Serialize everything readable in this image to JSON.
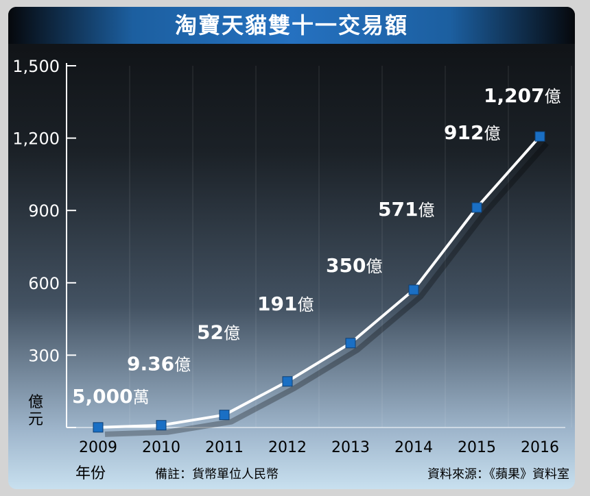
{
  "chart_data": {
    "type": "line",
    "title": "淘寶天貓雙十一交易額",
    "categories": [
      "2009",
      "2010",
      "2011",
      "2012",
      "2013",
      "2014",
      "2015",
      "2016"
    ],
    "series": [
      {
        "values": [
          0.5,
          9.36,
          52,
          191,
          350,
          571,
          912,
          1207
        ]
      }
    ],
    "data_labels": [
      {
        "value": "5,000",
        "unit": "萬"
      },
      {
        "value": "9.36",
        "unit": "億"
      },
      {
        "value": "52",
        "unit": "億"
      },
      {
        "value": "191",
        "unit": "億"
      },
      {
        "value": "350",
        "unit": "億"
      },
      {
        "value": "571",
        "unit": "億"
      },
      {
        "value": "912",
        "unit": "億"
      },
      {
        "value": "1,207",
        "unit": "億"
      }
    ],
    "ylim": [
      0,
      1500
    ],
    "y_ticks": [
      0,
      300,
      600,
      900,
      1200,
      1500
    ],
    "y_tick_labels": [
      "300",
      "600",
      "900",
      "1,200",
      "1,500"
    ],
    "ylabel": "億\n元",
    "xlabel": "年份",
    "grid": "vertical",
    "colors": {
      "line": "#ffffff",
      "marker": "#1a6fc4",
      "title_bar": "#2571c0"
    }
  },
  "notes": {
    "remark": "備註：貨幣單位人民幣",
    "source": "資料來源：《蘋果》資料室"
  }
}
